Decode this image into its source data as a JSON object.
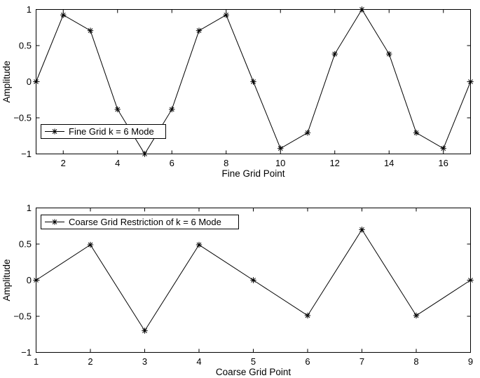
{
  "chart_data": [
    {
      "type": "line",
      "xlabel": "Fine Grid Point",
      "ylabel": "Amplitude",
      "xlim": [
        1,
        17
      ],
      "ylim": [
        -1,
        1
      ],
      "xticks": [
        2,
        4,
        6,
        8,
        10,
        12,
        14,
        16
      ],
      "yticks": [
        -1,
        -0.5,
        0,
        0.5,
        1
      ],
      "xtick_labels": [
        "2",
        "4",
        "6",
        "8",
        "10",
        "12",
        "14",
        "16"
      ],
      "ytick_labels": [
        "−1",
        "−0.5",
        "0",
        "0.5",
        "1"
      ],
      "grid": false,
      "legend_position": "bottom-left",
      "series": [
        {
          "name": "Fine Grid k = 6 Mode",
          "marker": "asterisk",
          "color": "#000000",
          "x": [
            1,
            2,
            3,
            4,
            5,
            6,
            7,
            8,
            9,
            10,
            11,
            12,
            13,
            14,
            15,
            16,
            17
          ],
          "y": [
            0,
            0.924,
            0.707,
            -0.383,
            -1,
            -0.383,
            0.707,
            0.924,
            0,
            -0.924,
            -0.707,
            0.383,
            1,
            0.383,
            -0.707,
            -0.924,
            0
          ]
        }
      ]
    },
    {
      "type": "line",
      "xlabel": "Coarse Grid Point",
      "ylabel": "Amplitude",
      "xlim": [
        1,
        9
      ],
      "ylim": [
        -1,
        1
      ],
      "xticks": [
        1,
        2,
        3,
        4,
        5,
        6,
        7,
        8,
        9
      ],
      "yticks": [
        -1,
        -0.5,
        0,
        0.5,
        1
      ],
      "xtick_labels": [
        "1",
        "2",
        "3",
        "4",
        "5",
        "6",
        "7",
        "8",
        "9"
      ],
      "ytick_labels": [
        "−1",
        "−0.5",
        "0",
        "0.5",
        "1"
      ],
      "grid": false,
      "legend_position": "top-left",
      "series": [
        {
          "name": "Coarse Grid Restriction of k = 6 Mode",
          "marker": "asterisk",
          "color": "#000000",
          "x": [
            1,
            2,
            3,
            4,
            5,
            6,
            7,
            8,
            9
          ],
          "y": [
            0,
            0.49,
            -0.7,
            0.49,
            0,
            -0.49,
            0.7,
            -0.49,
            0
          ]
        }
      ]
    }
  ]
}
